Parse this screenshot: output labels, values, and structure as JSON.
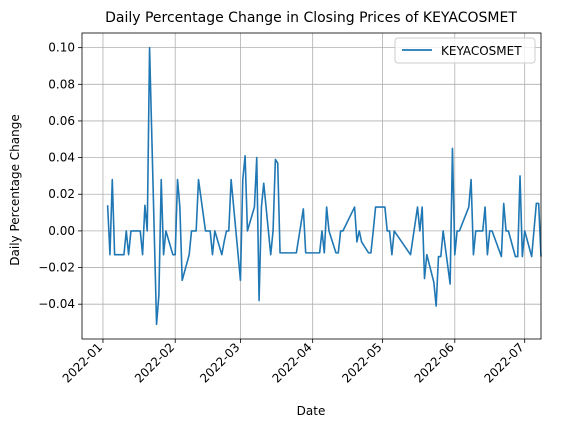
{
  "chart_data": {
    "type": "line",
    "title": "Daily Percentage Change in Closing Prices of KEYACOSMET",
    "xlabel": "Date",
    "ylabel": "Daily Percentage Change",
    "xlim": [
      "2021-12-23",
      "2022-07-08"
    ],
    "ylim": [
      -0.059,
      0.108
    ],
    "grid": true,
    "legend_position": "top-right",
    "x_ticks": [
      "2022-01-01",
      "2022-02-01",
      "2022-03-01",
      "2022-04-01",
      "2022-05-01",
      "2022-06-01",
      "2022-07-01"
    ],
    "x_tick_labels": [
      "2022-01",
      "2022-02",
      "2022-03",
      "2022-04",
      "2022-05",
      "2022-06",
      "2022-07"
    ],
    "y_ticks": [
      -0.04,
      -0.02,
      0.0,
      0.02,
      0.04,
      0.06,
      0.08,
      0.1
    ],
    "y_tick_labels": [
      "−0.04",
      "−0.02",
      "0.00",
      "0.02",
      "0.04",
      "0.06",
      "0.08",
      "0.10"
    ],
    "series": [
      {
        "name": "KEYACOSMET",
        "color": "#1f77b4",
        "points": [
          [
            "2022-01-03",
            0.014
          ],
          [
            "2022-01-04",
            -0.013
          ],
          [
            "2022-01-05",
            0.028
          ],
          [
            "2022-01-06",
            -0.013
          ],
          [
            "2022-01-07",
            -0.013
          ],
          [
            "2022-01-10",
            -0.013
          ],
          [
            "2022-01-11",
            0.0
          ],
          [
            "2022-01-12",
            -0.013
          ],
          [
            "2022-01-13",
            0.0
          ],
          [
            "2022-01-14",
            0.0
          ],
          [
            "2022-01-17",
            0.0
          ],
          [
            "2022-01-18",
            -0.013
          ],
          [
            "2022-01-19",
            0.014
          ],
          [
            "2022-01-20",
            0.0
          ],
          [
            "2022-01-21",
            0.1
          ],
          [
            "2022-01-24",
            -0.051
          ],
          [
            "2022-01-25",
            -0.035
          ],
          [
            "2022-01-26",
            0.028
          ],
          [
            "2022-01-27",
            -0.013
          ],
          [
            "2022-01-28",
            0.0
          ],
          [
            "2022-01-31",
            -0.013
          ],
          [
            "2022-02-01",
            -0.013
          ],
          [
            "2022-02-02",
            0.028
          ],
          [
            "2022-02-03",
            0.013
          ],
          [
            "2022-02-04",
            -0.027
          ],
          [
            "2022-02-07",
            -0.013
          ],
          [
            "2022-02-08",
            0.0
          ],
          [
            "2022-02-09",
            0.0
          ],
          [
            "2022-02-10",
            0.0
          ],
          [
            "2022-02-11",
            0.028
          ],
          [
            "2022-02-14",
            0.0
          ],
          [
            "2022-02-15",
            0.0
          ],
          [
            "2022-02-16",
            0.0
          ],
          [
            "2022-02-17",
            -0.013
          ],
          [
            "2022-02-18",
            0.0
          ],
          [
            "2022-02-21",
            -0.013
          ],
          [
            "2022-02-22",
            -0.006
          ],
          [
            "2022-02-23",
            0.0
          ],
          [
            "2022-02-24",
            0.0
          ],
          [
            "2022-02-25",
            0.028
          ],
          [
            "2022-02-28",
            -0.013
          ],
          [
            "2022-03-01",
            -0.027
          ],
          [
            "2022-03-02",
            0.028
          ],
          [
            "2022-03-03",
            0.041
          ],
          [
            "2022-03-04",
            0.0
          ],
          [
            "2022-03-07",
            0.013
          ],
          [
            "2022-03-08",
            0.04
          ],
          [
            "2022-03-09",
            -0.038
          ],
          [
            "2022-03-10",
            0.013
          ],
          [
            "2022-03-11",
            0.026
          ],
          [
            "2022-03-14",
            -0.013
          ],
          [
            "2022-03-15",
            0.0
          ],
          [
            "2022-03-16",
            0.039
          ],
          [
            "2022-03-17",
            0.037
          ],
          [
            "2022-03-18",
            -0.012
          ],
          [
            "2022-03-21",
            -0.012
          ],
          [
            "2022-03-24",
            -0.012
          ],
          [
            "2022-03-25",
            -0.012
          ],
          [
            "2022-03-28",
            0.012
          ],
          [
            "2022-03-29",
            -0.012
          ],
          [
            "2022-04-04",
            -0.012
          ],
          [
            "2022-04-05",
            0.0
          ],
          [
            "2022-04-06",
            -0.012
          ],
          [
            "2022-04-07",
            0.013
          ],
          [
            "2022-04-08",
            0.0
          ],
          [
            "2022-04-11",
            -0.012
          ],
          [
            "2022-04-12",
            -0.012
          ],
          [
            "2022-04-13",
            0.0
          ],
          [
            "2022-04-14",
            0.0
          ],
          [
            "2022-04-19",
            0.013
          ],
          [
            "2022-04-20",
            -0.006
          ],
          [
            "2022-04-21",
            0.0
          ],
          [
            "2022-04-22",
            -0.006
          ],
          [
            "2022-04-25",
            -0.012
          ],
          [
            "2022-04-26",
            -0.012
          ],
          [
            "2022-04-27",
            0.0
          ],
          [
            "2022-04-28",
            0.013
          ],
          [
            "2022-05-02",
            0.013
          ],
          [
            "2022-05-03",
            0.0
          ],
          [
            "2022-05-04",
            0.0
          ],
          [
            "2022-05-05",
            -0.013
          ],
          [
            "2022-05-06",
            0.0
          ],
          [
            "2022-05-13",
            -0.013
          ],
          [
            "2022-05-16",
            0.013
          ],
          [
            "2022-05-17",
            0.0
          ],
          [
            "2022-05-18",
            0.013
          ],
          [
            "2022-05-19",
            -0.026
          ],
          [
            "2022-05-20",
            -0.013
          ],
          [
            "2022-05-23",
            -0.028
          ],
          [
            "2022-05-24",
            -0.041
          ],
          [
            "2022-05-25",
            -0.014
          ],
          [
            "2022-05-26",
            -0.014
          ],
          [
            "2022-05-27",
            0.0
          ],
          [
            "2022-05-30",
            -0.029
          ],
          [
            "2022-05-31",
            0.045
          ],
          [
            "2022-06-01",
            -0.013
          ],
          [
            "2022-06-02",
            0.0
          ],
          [
            "2022-06-03",
            0.0
          ],
          [
            "2022-06-07",
            0.013
          ],
          [
            "2022-06-08",
            0.028
          ],
          [
            "2022-06-09",
            -0.013
          ],
          [
            "2022-06-10",
            0.0
          ],
          [
            "2022-06-13",
            0.0
          ],
          [
            "2022-06-14",
            0.013
          ],
          [
            "2022-06-15",
            -0.013
          ],
          [
            "2022-06-16",
            0.0
          ],
          [
            "2022-06-17",
            0.0
          ],
          [
            "2022-06-21",
            -0.014
          ],
          [
            "2022-06-22",
            0.015
          ],
          [
            "2022-06-23",
            0.0
          ],
          [
            "2022-06-24",
            0.0
          ],
          [
            "2022-06-27",
            -0.014
          ],
          [
            "2022-06-28",
            -0.014
          ],
          [
            "2022-06-29",
            0.03
          ],
          [
            "2022-06-30",
            -0.014
          ],
          [
            "2022-07-01",
            0.0
          ],
          [
            "2022-07-04",
            -0.014
          ],
          [
            "2022-07-06",
            0.015
          ],
          [
            "2022-07-07",
            0.015
          ],
          [
            "2022-07-08",
            -0.014
          ]
        ]
      }
    ]
  }
}
